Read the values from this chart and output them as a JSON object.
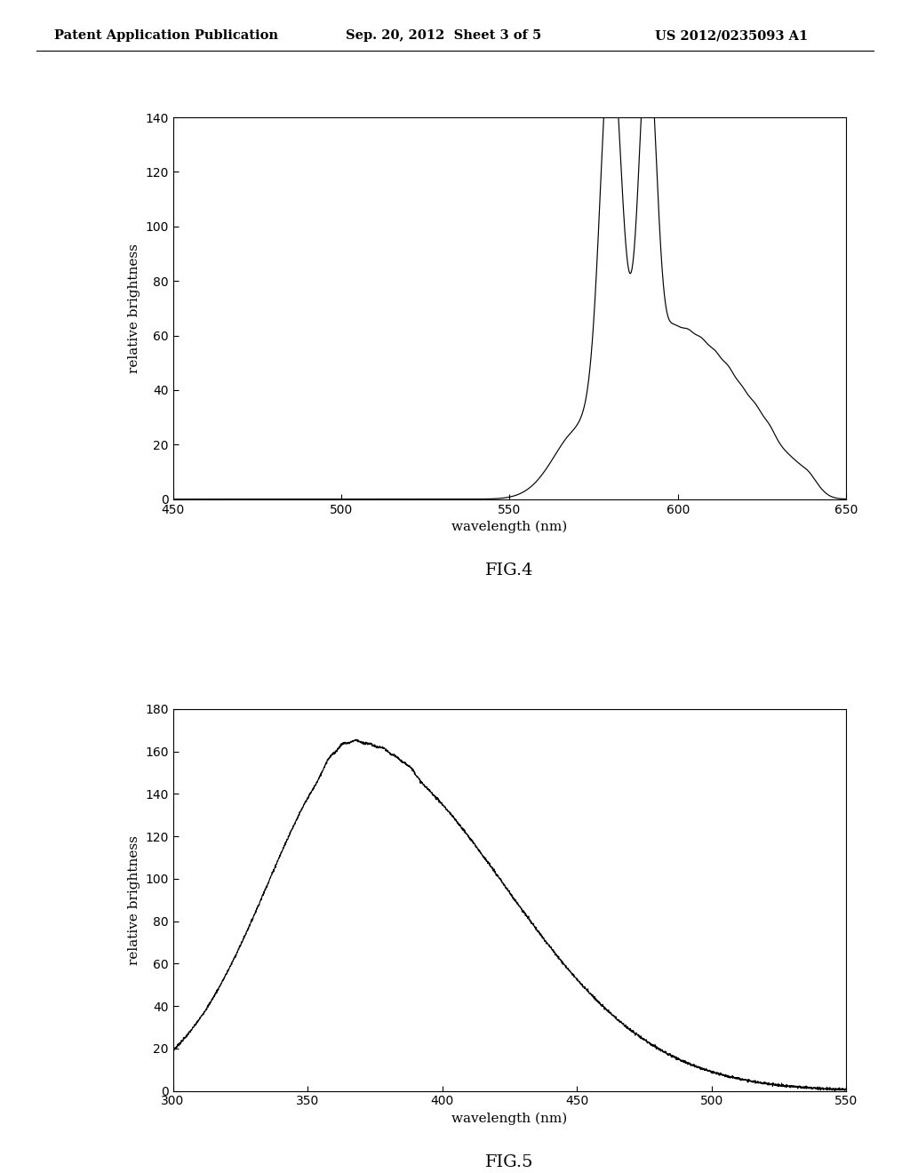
{
  "header_left": "Patent Application Publication",
  "header_mid": "Sep. 20, 2012  Sheet 3 of 5",
  "header_right": "US 2012/0235093 A1",
  "fig4": {
    "xlabel": "wavelength (nm)",
    "ylabel": "relative brightness",
    "xmin": 450,
    "xmax": 650,
    "ymin": 0,
    "ymax": 140,
    "xticks": [
      450,
      500,
      550,
      600,
      650
    ],
    "yticks": [
      0,
      20,
      40,
      60,
      80,
      100,
      120,
      140
    ],
    "caption": "FIG.4"
  },
  "fig5": {
    "xlabel": "wavelength (nm)",
    "ylabel": "relative brightness",
    "xmin": 300,
    "xmax": 550,
    "ymin": 0,
    "ymax": 180,
    "xticks": [
      300,
      350,
      400,
      450,
      500,
      550
    ],
    "yticks": [
      0,
      20,
      40,
      60,
      80,
      100,
      120,
      140,
      160,
      180
    ],
    "caption": "FIG.5"
  },
  "line_color": "#000000",
  "bg_color": "#ffffff",
  "font_family": "DejaVu Serif"
}
